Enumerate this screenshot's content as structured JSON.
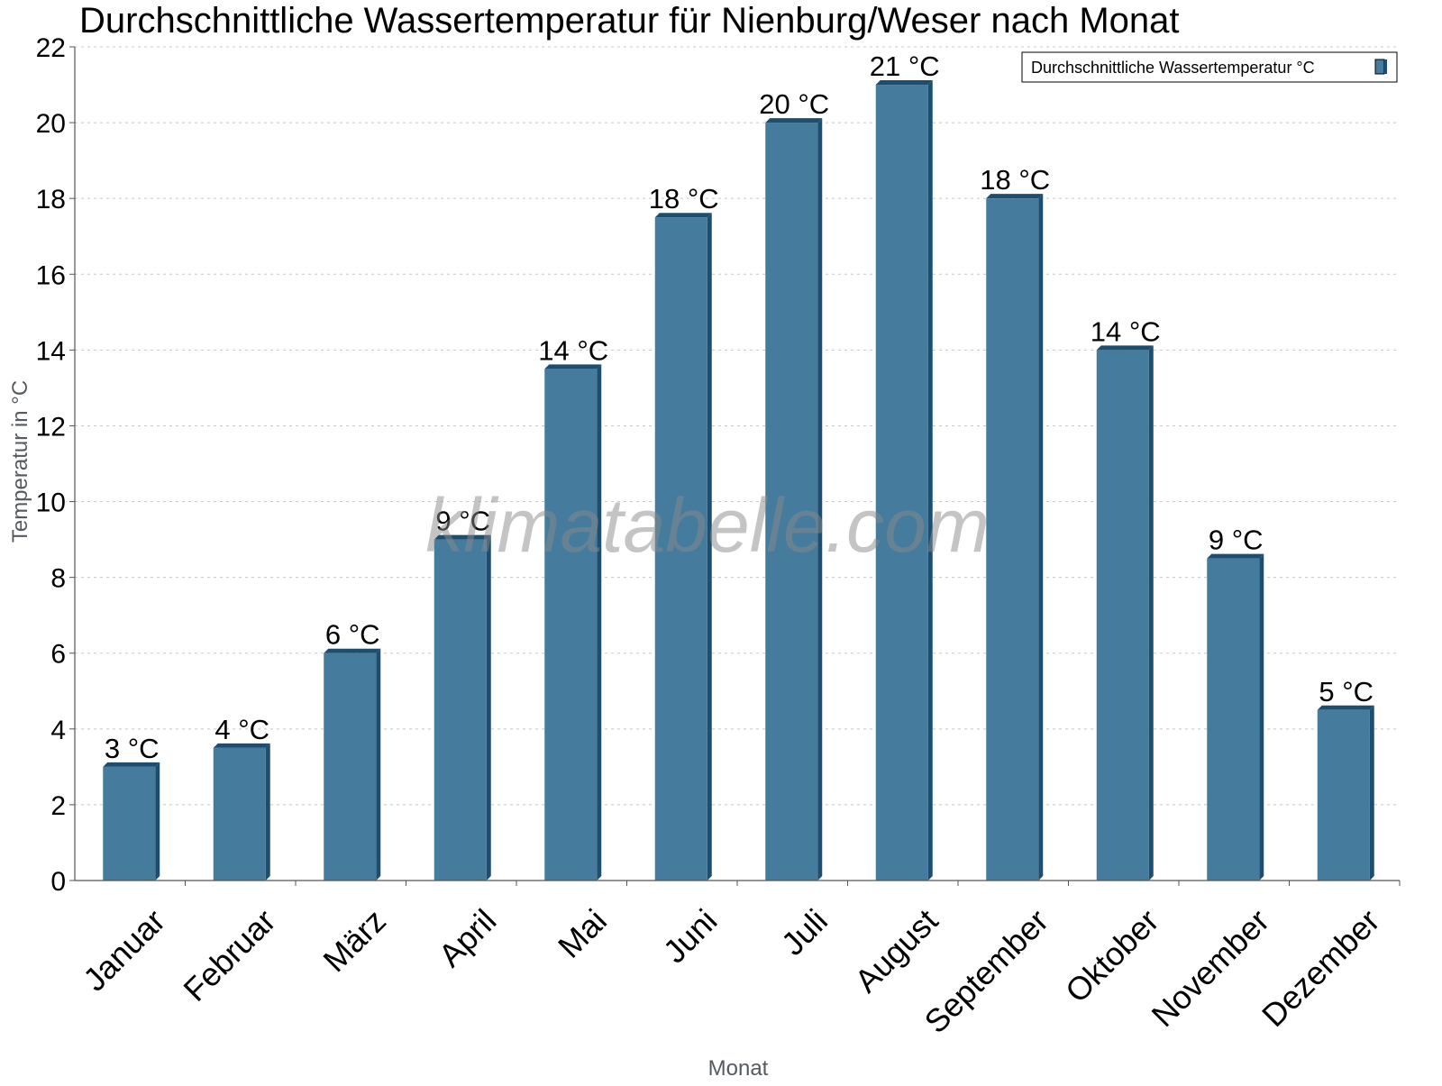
{
  "chart_data": {
    "type": "bar",
    "title": "Durchschnittliche Wassertemperatur für Nienburg/Weser nach Monat",
    "xlabel": "Monat",
    "ylabel": "Temperatur in °C",
    "ylim": [
      0,
      22
    ],
    "yticks": [
      0,
      2,
      4,
      6,
      8,
      10,
      12,
      14,
      16,
      18,
      20,
      22
    ],
    "grid": true,
    "legend_position": "top-right",
    "categories": [
      "Januar",
      "Februar",
      "März",
      "April",
      "Mai",
      "Juni",
      "Juli",
      "August",
      "September",
      "Oktober",
      "November",
      "Dezember"
    ],
    "series": [
      {
        "name": "Durchschnittliche Wassertemperatur °C",
        "values": [
          3.0,
          3.5,
          6.0,
          9.0,
          13.5,
          17.5,
          20.0,
          21.0,
          18.0,
          14.0,
          8.5,
          4.5
        ],
        "labels": [
          "3 °C",
          "4 °C",
          "6 °C",
          "9 °C",
          "14 °C",
          "18 °C",
          "20 °C",
          "21 °C",
          "18 °C",
          "14 °C",
          "9 °C",
          "5 °C"
        ]
      }
    ],
    "colors": {
      "bar_face": "#457b9d",
      "bar_side": "#1d4e6f",
      "grid": "#c8c8c8",
      "axis": "#555555"
    },
    "watermark": "klimatabelle.com"
  }
}
